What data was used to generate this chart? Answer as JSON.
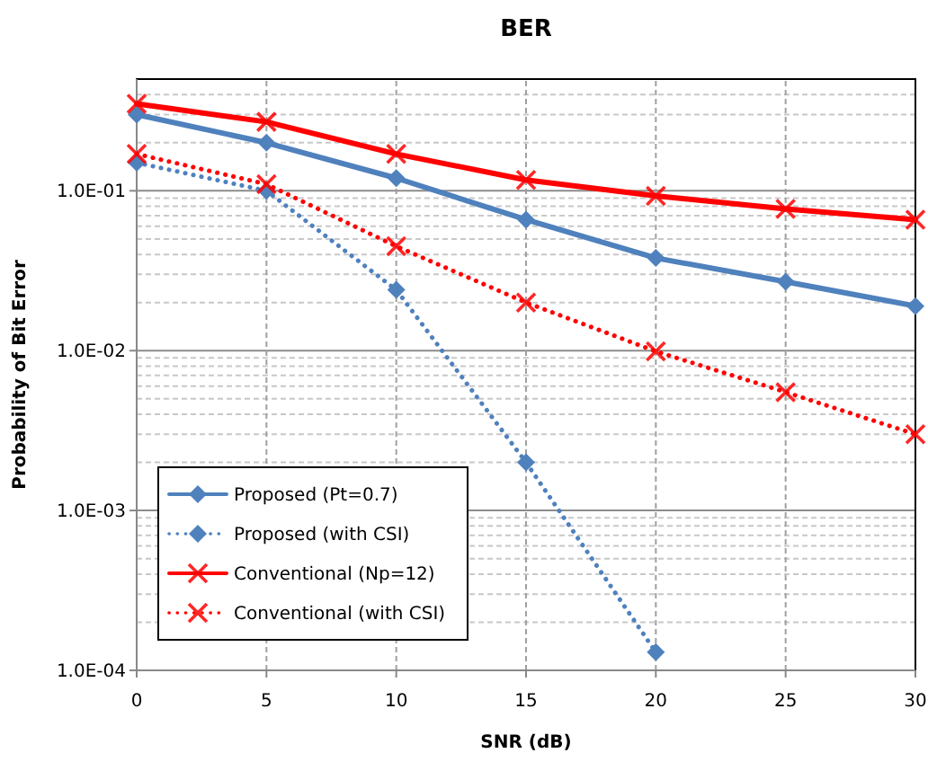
{
  "chart_data": {
    "type": "line",
    "title": "BER",
    "xlabel": "SNR (dB)",
    "ylabel": "Probability of Bit Error",
    "x": [
      0,
      5,
      10,
      15,
      20,
      25,
      30
    ],
    "xlim": [
      0,
      30
    ],
    "xticks": [
      0,
      5,
      10,
      15,
      20,
      25,
      30
    ],
    "ylim": [
      0.0001,
      0.5
    ],
    "yticks": [
      {
        "value": 0.0001,
        "label": "1.0E-04"
      },
      {
        "value": 0.001,
        "label": "1.0E-03"
      },
      {
        "value": 0.01,
        "label": "1.0E-02"
      },
      {
        "value": 0.1,
        "label": "1.0E-01"
      }
    ],
    "log": "y",
    "grid": true,
    "legend": "bottom left",
    "series": [
      {
        "name": "Proposed (Pt=0.7)",
        "color": "#4f81bd",
        "marker": "diamond",
        "line_style": "solid",
        "values": [
          0.3,
          0.2,
          0.12,
          0.066,
          0.038,
          0.027,
          0.019
        ]
      },
      {
        "name": "Proposed (with CSI)",
        "color": "#4f81bd",
        "marker": "diamond",
        "line_style": "dotted",
        "values": [
          0.15,
          0.1,
          0.024,
          0.002,
          0.00013,
          null,
          null
        ]
      },
      {
        "name": "Conventional (Np=12)",
        "color": "#ff0000",
        "marker": "cross",
        "line_style": "solid",
        "values": [
          0.35,
          0.27,
          0.17,
          0.117,
          0.093,
          0.077,
          0.066
        ]
      },
      {
        "name": "Conventional (with CSI)",
        "color": "#ff0000",
        "marker": "cross",
        "line_style": "dotted",
        "values": [
          0.17,
          0.11,
          0.045,
          0.02,
          0.0099,
          0.0055,
          0.003
        ]
      }
    ]
  }
}
